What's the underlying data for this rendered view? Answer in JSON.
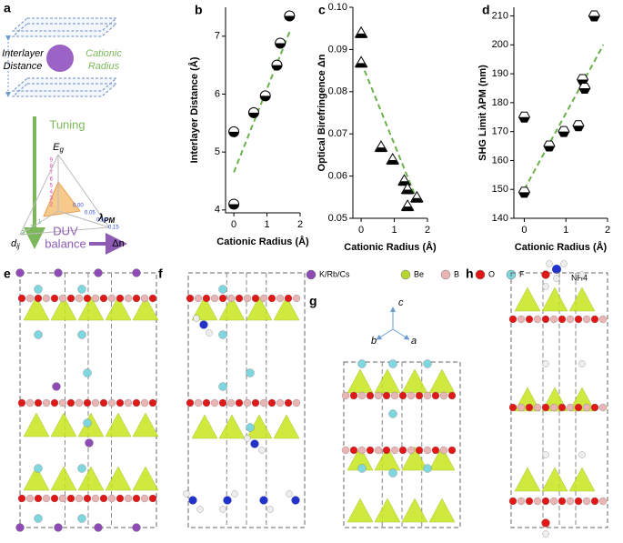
{
  "chart_data": [
    {
      "type": "scatter",
      "letter": "b",
      "marker": "circle",
      "xlabel": "Cationic Radius (Å)",
      "ylabel": "Interlayer Distance (Å)",
      "x": [
        0,
        0,
        0.6,
        0.95,
        1.3,
        1.4,
        1.68
      ],
      "values": [
        4.1,
        5.35,
        5.68,
        5.97,
        6.5,
        6.88,
        7.35
      ],
      "xlim": [
        -0.25,
        2.0
      ],
      "ylim": [
        3.95,
        7.5
      ],
      "xticks": [
        0,
        1,
        2
      ],
      "yticks": [
        4,
        5,
        6,
        7
      ],
      "trend": {
        "x": [
          0,
          1.7
        ],
        "values": [
          4.65,
          7.1
        ],
        "color": "#6ab04c"
      },
      "color": "#000000"
    },
    {
      "type": "scatter",
      "letter": "c",
      "marker": "triangle",
      "xlabel": "Cationic Radius (Å)",
      "ylabel": "Optical Birefringence Δn",
      "x": [
        0,
        0,
        0.6,
        0.95,
        1.3,
        1.4,
        1.4,
        1.68
      ],
      "values": [
        0.094,
        0.087,
        0.067,
        0.064,
        0.059,
        0.057,
        0.053,
        0.055
      ],
      "xlim": [
        -0.25,
        2.0
      ],
      "ylim": [
        0.05,
        0.1
      ],
      "xticks": [
        0,
        1,
        2
      ],
      "yticks": [
        0.05,
        0.06,
        0.07,
        0.08,
        0.09,
        {
          "value": 0.1,
          "label": "0.10"
        }
      ],
      "trend": {
        "x": [
          0,
          1.7
        ],
        "values": [
          0.087,
          0.054
        ],
        "color": "#6ab04c"
      },
      "color": "#000000"
    },
    {
      "type": "scatter",
      "letter": "d",
      "marker": "hexagon",
      "xlabel": "Cationic Radius (Å)",
      "ylabel": "SHG Limit λPM (nm)",
      "x": [
        0,
        0,
        0.6,
        0.95,
        1.3,
        1.4,
        1.45,
        1.68
      ],
      "values": [
        175,
        149,
        165,
        170,
        172,
        188,
        185,
        210
      ],
      "xlim": [
        -0.25,
        2.0
      ],
      "ylim": [
        140,
        213
      ],
      "xticks": [
        0,
        1,
        2
      ],
      "yticks": [
        140,
        150,
        160,
        170,
        180,
        190,
        200,
        210
      ],
      "trend": {
        "x": [
          0,
          1.9
        ],
        "values": [
          150,
          200
        ],
        "color": "#6ab04c"
      },
      "color": "#000000"
    }
  ],
  "schematic": {
    "letter": "a",
    "interlayer": [
      "Interlayer",
      "Distance"
    ],
    "cationic": [
      "Cationic",
      "Radius"
    ],
    "tuning": "Tuning",
    "eg": "E",
    "eg_sub": "g",
    "lambda": "λ",
    "lambda_sub": "PM",
    "dij": "d",
    "dij_sub": "ij",
    "dn": "Δn",
    "duv": [
      "DUV",
      "balance"
    ],
    "eg_scale": [
      "9",
      "8",
      "7",
      "6",
      "5",
      "4",
      "3",
      "2"
    ],
    "dij_scale": [
      "1",
      "2",
      "3"
    ],
    "dn_scale": [
      "0.00",
      "0.05",
      "0.10",
      "0.15"
    ]
  },
  "structures": {
    "letters": [
      "e",
      "f",
      "g",
      "h"
    ],
    "atom_legend": [
      "K/Rb/Cs",
      "Be",
      "B",
      "O",
      "F",
      "NH4"
    ],
    "axes": [
      "c",
      "b",
      "a"
    ]
  }
}
